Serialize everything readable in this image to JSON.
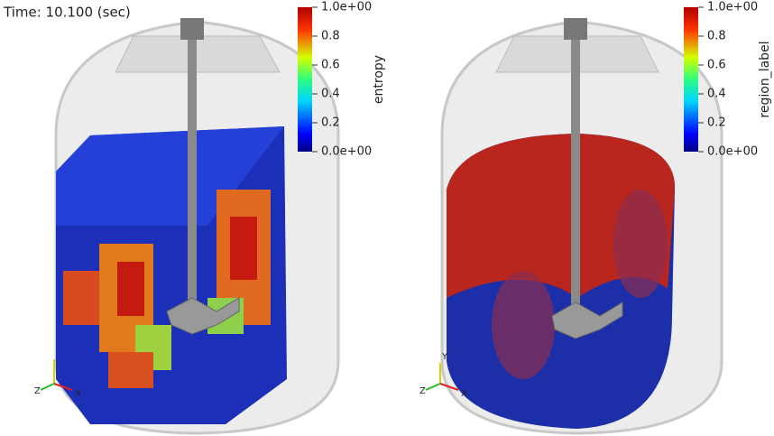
{
  "time_label": "Time: 10.100 (sec)",
  "panels": [
    {
      "colorbar": {
        "title": "entropy",
        "ticks": [
          "1.0e+00",
          "0.8",
          "0.6",
          "0.4",
          "0.2",
          "0.0e+00"
        ]
      },
      "axes": [
        "Z",
        "X"
      ]
    },
    {
      "colorbar": {
        "title": "region_label",
        "ticks": [
          "1.0e+00",
          "0.8",
          "0.6",
          "0.4",
          "0.2",
          "0.0e+00"
        ]
      },
      "axes": [
        "Y",
        "Z",
        "X"
      ]
    }
  ]
}
